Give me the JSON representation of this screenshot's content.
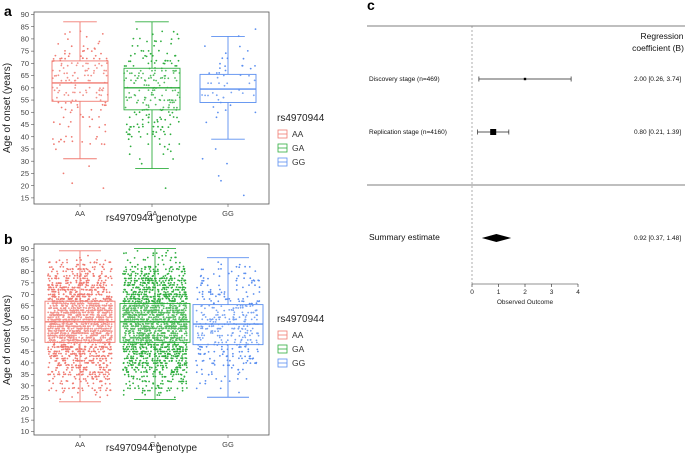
{
  "panels": {
    "a": "a",
    "b": "b",
    "c": "c"
  },
  "chart_data": [
    {
      "type": "boxplot",
      "panel": "a",
      "xlabel": "rs4970944 genotype",
      "ylabel": "Age of onset (years)",
      "ylim": [
        12.5,
        91
      ],
      "yticks": [
        15,
        20,
        25,
        30,
        35,
        40,
        45,
        50,
        55,
        60,
        65,
        70,
        75,
        80,
        85,
        90
      ],
      "categories": [
        "AA",
        "GA",
        "GG"
      ],
      "colors": [
        "#f07b72",
        "#2fae3f",
        "#5b8ff0"
      ],
      "boxes": [
        {
          "min": 31,
          "q1": 54.5,
          "median": 62,
          "q3": 71,
          "max": 87
        },
        {
          "min": 27,
          "q1": 51,
          "median": 60,
          "q3": 68,
          "max": 87
        },
        {
          "min": 39,
          "q1": 54,
          "median": 59.5,
          "q3": 65.5,
          "max": 81
        }
      ],
      "n_points": [
        170,
        240,
        50
      ],
      "outliers": [
        [
          19,
          21,
          25,
          28
        ],
        [
          19
        ],
        [
          16,
          22,
          24,
          29,
          31,
          35,
          84
        ]
      ],
      "legend": {
        "title": "rs4970944",
        "entries": [
          "AA",
          "GA",
          "GG"
        ],
        "position": "right"
      }
    },
    {
      "type": "boxplot",
      "panel": "b",
      "xlabel": "rs4970944 genotype",
      "ylabel": "Age of onset (years)",
      "ylim": [
        8.5,
        92
      ],
      "yticks": [
        10,
        15,
        20,
        25,
        30,
        35,
        40,
        45,
        50,
        55,
        60,
        65,
        70,
        75,
        80,
        85,
        90
      ],
      "categories": [
        "AA",
        "GA",
        "GG"
      ],
      "colors": [
        "#f07b72",
        "#2fae3f",
        "#5b8ff0"
      ],
      "boxes": [
        {
          "min": 23,
          "q1": 49,
          "median": 58,
          "q3": 67,
          "max": 89
        },
        {
          "min": 24,
          "q1": 49,
          "median": 58,
          "q3": 66,
          "max": 90
        },
        {
          "min": 25,
          "q1": 48,
          "median": 57,
          "q3": 65.5,
          "max": 86
        }
      ],
      "n_points": [
        1800,
        1900,
        380
      ],
      "legend": {
        "title": "rs4970944",
        "entries": [
          "AA",
          "GA",
          "GG"
        ],
        "position": "right"
      }
    },
    {
      "type": "forest",
      "panel": "c",
      "header": [
        "Regression",
        "coefficient (B)"
      ],
      "xlabel": "Observed Outcome",
      "xlim": [
        -0.5,
        4.6
      ],
      "xticks": [
        0,
        1,
        2,
        3,
        4
      ],
      "rows": [
        {
          "label": "Discovery stage (n=469)",
          "estimate": 2.0,
          "lower": 0.26,
          "upper": 3.74,
          "text": "2.00 [0.26, 3.74]"
        },
        {
          "label": "Replication stage (n=4160)",
          "estimate": 0.8,
          "lower": 0.21,
          "upper": 1.39,
          "text": "0.80 [0.21, 1.39]"
        }
      ],
      "summary": {
        "label": "Summary estimate",
        "estimate": 0.92,
        "lower": 0.37,
        "upper": 1.48,
        "text": "0.92 [0.37, 1.48]"
      }
    }
  ]
}
